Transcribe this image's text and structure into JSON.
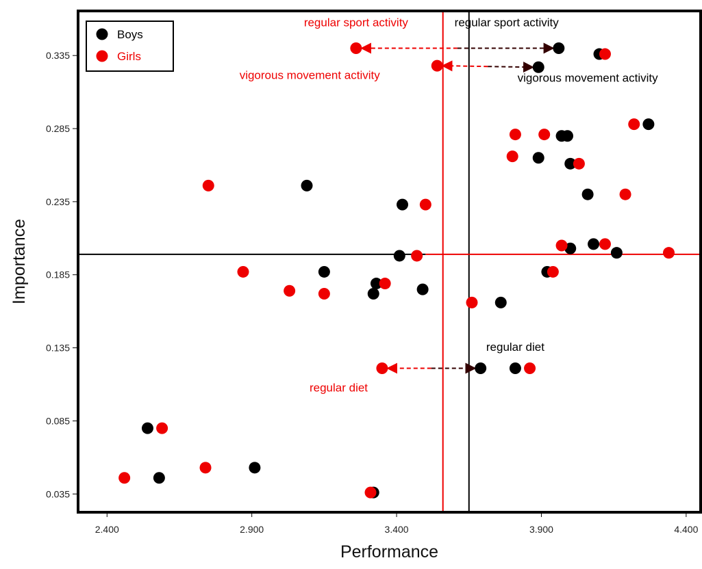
{
  "chart_data": {
    "type": "scatter",
    "xlabel": "Performance",
    "ylabel": "Importance",
    "xlim": [
      2.3,
      4.45
    ],
    "ylim": [
      0.0225,
      0.3655
    ],
    "x_ticks": [
      "2.400",
      "2.900",
      "3.400",
      "3.900",
      "4.400"
    ],
    "x_tick_values": [
      2.4,
      2.9,
      3.4,
      3.9,
      4.4
    ],
    "y_ticks": [
      "0.335",
      "0.285",
      "0.235",
      "0.185",
      "0.135",
      "0.085",
      "0.035"
    ],
    "y_tick_values": [
      0.335,
      0.285,
      0.235,
      0.185,
      0.135,
      0.085,
      0.035
    ],
    "grid": false,
    "legend_position": "top-left",
    "colors": {
      "boys": "#000000",
      "girls": "#ee0000"
    },
    "reference_lines": {
      "boys_performance_mean": 3.65,
      "girls_performance_mean": 3.56,
      "boys_importance_mean": 0.199,
      "girls_importance_mean": 0.199
    },
    "series": [
      {
        "name": "Boys",
        "points": [
          [
            3.96,
            0.34
          ],
          [
            4.1,
            0.336
          ],
          [
            3.89,
            0.327
          ],
          [
            4.27,
            0.288
          ],
          [
            3.97,
            0.28
          ],
          [
            3.99,
            0.28
          ],
          [
            3.89,
            0.265
          ],
          [
            4.0,
            0.261
          ],
          [
            3.09,
            0.246
          ],
          [
            4.06,
            0.24
          ],
          [
            3.42,
            0.233
          ],
          [
            4.08,
            0.206
          ],
          [
            4.0,
            0.203
          ],
          [
            4.16,
            0.2
          ],
          [
            3.41,
            0.198
          ],
          [
            3.15,
            0.187
          ],
          [
            3.92,
            0.187
          ],
          [
            3.33,
            0.179
          ],
          [
            3.32,
            0.172
          ],
          [
            3.49,
            0.175
          ],
          [
            3.76,
            0.166
          ],
          [
            3.69,
            0.121
          ],
          [
            3.81,
            0.121
          ],
          [
            2.54,
            0.08
          ],
          [
            2.58,
            0.046
          ],
          [
            2.91,
            0.053
          ],
          [
            3.32,
            0.036
          ]
        ]
      },
      {
        "name": "Girls",
        "points": [
          [
            3.26,
            0.34
          ],
          [
            4.12,
            0.336
          ],
          [
            3.54,
            0.328
          ],
          [
            4.22,
            0.288
          ],
          [
            3.81,
            0.281
          ],
          [
            3.91,
            0.281
          ],
          [
            3.8,
            0.266
          ],
          [
            4.03,
            0.261
          ],
          [
            2.75,
            0.246
          ],
          [
            4.19,
            0.24
          ],
          [
            3.5,
            0.233
          ],
          [
            3.97,
            0.205
          ],
          [
            4.12,
            0.206
          ],
          [
            4.34,
            0.2
          ],
          [
            3.47,
            0.198
          ],
          [
            2.87,
            0.187
          ],
          [
            3.94,
            0.187
          ],
          [
            3.36,
            0.179
          ],
          [
            3.03,
            0.174
          ],
          [
            3.15,
            0.172
          ],
          [
            3.66,
            0.166
          ],
          [
            3.35,
            0.121
          ],
          [
            3.86,
            0.121
          ],
          [
            2.59,
            0.08
          ],
          [
            2.46,
            0.046
          ],
          [
            2.74,
            0.053
          ],
          [
            3.31,
            0.036
          ]
        ]
      }
    ],
    "legend": [
      {
        "label": "Boys",
        "color": "#000000"
      },
      {
        "label": "Girls",
        "color": "#ee0000"
      }
    ],
    "annotations": [
      {
        "id": "boys-regular-sport",
        "text": "regular sport activity",
        "color": "#000000",
        "x": 3.78,
        "y": 0.355
      },
      {
        "id": "girls-regular-sport",
        "text": "regular sport activity",
        "color": "#ee0000",
        "x": 3.26,
        "y": 0.355
      },
      {
        "id": "girls-vigorous",
        "text": "vigorous movement activity",
        "color": "#ee0000",
        "x": 3.1,
        "y": 0.319
      },
      {
        "id": "boys-vigorous",
        "text": "vigorous movement activity",
        "color": "#000000",
        "x": 4.06,
        "y": 0.317
      },
      {
        "id": "boys-regular-diet",
        "text": "regular diet",
        "color": "#000000",
        "x": 3.81,
        "y": 0.133
      },
      {
        "id": "girls-regular-diet",
        "text": "regular diet",
        "color": "#ee0000",
        "x": 3.2,
        "y": 0.105
      }
    ],
    "arrows": [
      {
        "from": [
          3.27,
          0.34
        ],
        "to": [
          3.95,
          0.34
        ]
      },
      {
        "from": [
          3.55,
          0.328
        ],
        "to": [
          3.88,
          0.327
        ]
      },
      {
        "from": [
          3.36,
          0.121
        ],
        "to": [
          3.68,
          0.121
        ]
      }
    ]
  }
}
